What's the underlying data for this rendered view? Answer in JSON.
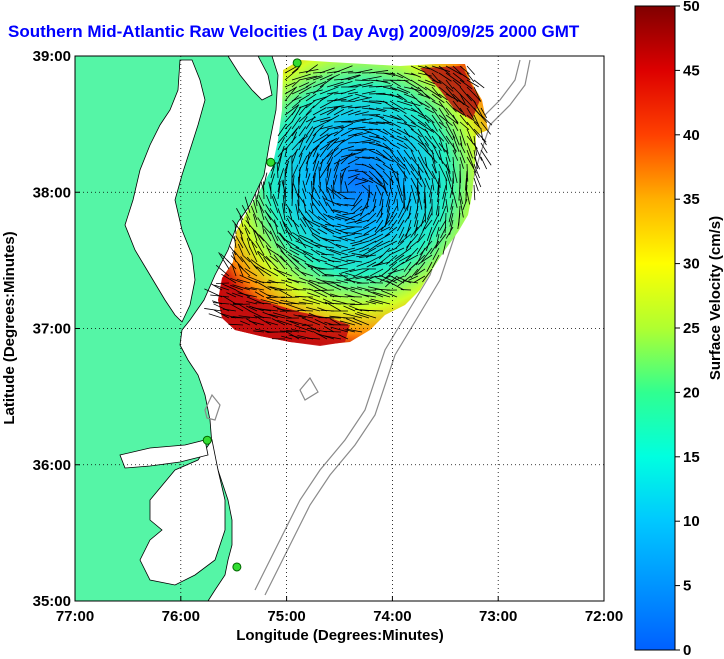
{
  "title": "Southern Mid-Atlantic Raw Velocities (1 Day Avg) 2009/09/25 2000 GMT",
  "colors": {
    "title": "#0000ff",
    "land": "#55f5a6",
    "ocean": "#ffffff",
    "isobath": "#8a8a8a",
    "vector": "#000000",
    "station": "#33dd33"
  },
  "map": {
    "xlabel": "Longitude (Degrees:Minutes)",
    "ylabel": "Latitude (Degrees:Minutes)",
    "lon_range": [
      -77,
      -72
    ],
    "lat_range": [
      35,
      39
    ],
    "x_ticks": [
      {
        "value": -77,
        "label": "77:00"
      },
      {
        "value": -76,
        "label": "76:00"
      },
      {
        "value": -75,
        "label": "75:00"
      },
      {
        "value": -74,
        "label": "74:00"
      },
      {
        "value": -73,
        "label": "73:00"
      },
      {
        "value": -72,
        "label": "72:00"
      }
    ],
    "y_ticks": [
      {
        "value": 39,
        "label": "39:00"
      },
      {
        "value": 38,
        "label": "38:00"
      },
      {
        "value": 37,
        "label": "37:00"
      },
      {
        "value": 36,
        "label": "36:00"
      },
      {
        "value": 35,
        "label": "35:00"
      }
    ],
    "grid": "dotted",
    "stations": [
      {
        "lon": -74.9,
        "lat": 38.95
      },
      {
        "lon": -75.15,
        "lat": 38.22
      },
      {
        "lon": -75.75,
        "lat": 36.18
      },
      {
        "lon": -75.47,
        "lat": 35.25
      }
    ]
  },
  "colorbar": {
    "label": "Surface Velocity (cm/s)",
    "min": 0,
    "max": 50,
    "ticks": [
      "0",
      "5",
      "10",
      "15",
      "20",
      "25",
      "30",
      "35",
      "40",
      "45",
      "50"
    ]
  }
}
